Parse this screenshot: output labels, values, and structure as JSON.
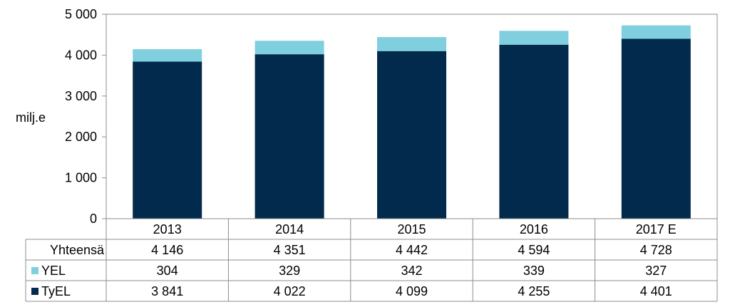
{
  "chart_data": {
    "type": "bar",
    "stacked": true,
    "categories": [
      "2013",
      "2014",
      "2015",
      "2016",
      "2017 E"
    ],
    "series": [
      {
        "name": "TyEL",
        "values": [
          3841,
          4022,
          4099,
          4255,
          4401
        ],
        "display": [
          "3 841",
          "4 022",
          "4 099",
          "4 255",
          "4 401"
        ],
        "color": "#012a4c"
      },
      {
        "name": "YEL",
        "values": [
          304,
          329,
          342,
          339,
          327
        ],
        "display": [
          "304",
          "329",
          "342",
          "339",
          "327"
        ],
        "color": "#7fcfdf"
      }
    ],
    "totals": {
      "name": "Yhteensä",
      "values": [
        4146,
        4351,
        4442,
        4594,
        4728
      ],
      "display": [
        "4 146",
        "4 351",
        "4 442",
        "4 594",
        "4 728"
      ]
    },
    "ylabel": "milj.e",
    "ylim": [
      0,
      5000
    ],
    "yticks": [
      0,
      1000,
      2000,
      3000,
      4000,
      5000
    ],
    "ytick_labels": [
      "0",
      "1 000",
      "2 000",
      "3 000",
      "4 000",
      "5 000"
    ],
    "grid": false,
    "legend": "data-table"
  }
}
